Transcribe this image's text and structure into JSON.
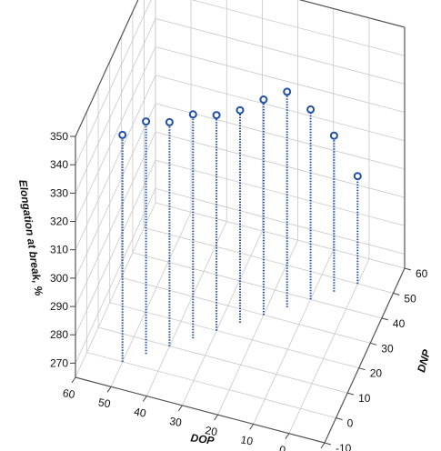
{
  "chart_data": {
    "type": "scatter",
    "subtype": "3d-stem",
    "xlabel": "DOP",
    "ylabel": "DNP",
    "zlabel": "Elongation at break, %",
    "x_ticks": [
      60,
      50,
      40,
      30,
      20,
      10,
      0,
      -10
    ],
    "y_ticks": [
      -10,
      0,
      10,
      20,
      30,
      40,
      50,
      60
    ],
    "z_ticks": [
      270,
      280,
      290,
      300,
      310,
      320,
      330,
      340,
      350
    ],
    "z_tick_labels": [
      "270",
      "280",
      "290",
      "300",
      "310",
      "320",
      "330",
      "340",
      "350"
    ],
    "xlim": [
      -10,
      60
    ],
    "ylim": [
      -10,
      60
    ],
    "zlim": [
      265,
      350
    ],
    "grid": true,
    "color": "#1f4fa8",
    "points": [
      {
        "DOP": 50,
        "DNP": 0,
        "elongation": 345
      },
      {
        "DOP": 45,
        "DNP": 5,
        "elongation": 347
      },
      {
        "DOP": 40,
        "DNP": 10,
        "elongation": 344
      },
      {
        "DOP": 35,
        "DNP": 15,
        "elongation": 344
      },
      {
        "DOP": 30,
        "DNP": 20,
        "elongation": 341
      },
      {
        "DOP": 25,
        "DNP": 25,
        "elongation": 340
      },
      {
        "DOP": 20,
        "DNP": 30,
        "elongation": 341
      },
      {
        "DOP": 15,
        "DNP": 35,
        "elongation": 341
      },
      {
        "DOP": 10,
        "DNP": 40,
        "elongation": 332
      },
      {
        "DOP": 5,
        "DNP": 45,
        "elongation": 320
      },
      {
        "DOP": 0,
        "DNP": 50,
        "elongation": 303
      }
    ]
  }
}
